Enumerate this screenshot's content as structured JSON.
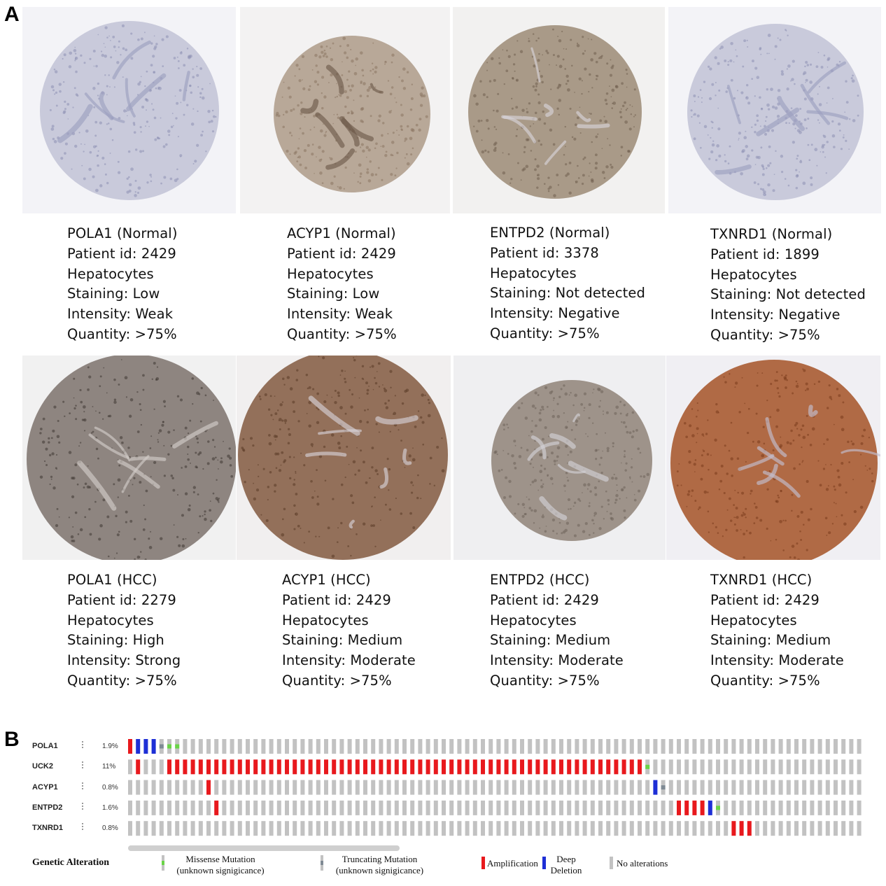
{
  "panel_a": {
    "letter": "A",
    "normal_row": [
      {
        "gene": "POLA1 (Normal)",
        "patient": "Patient id: 2429",
        "cell": "Hepatocytes",
        "staining": "Staining: Low",
        "intensity": "Intensity: Weak",
        "quantity": "Quantity: >75%",
        "tone": "weak"
      },
      {
        "gene": "ACYP1 (Normal)",
        "patient": "Patient id: 2429",
        "cell": "Hepatocytes",
        "staining": "Staining: Low",
        "intensity": "Intensity: Weak",
        "quantity": "Quantity: >75%",
        "tone": "lowbrown"
      },
      {
        "gene": "ENTPD2 (Normal)",
        "patient": "Patient id: 3378",
        "cell": "Hepatocytes",
        "staining": "Staining: Not detected",
        "intensity": "Intensity: Negative",
        "quantity": "Quantity: >75%",
        "tone": "lowbrown2"
      },
      {
        "gene": "TXNRD1 (Normal)",
        "patient": "Patient id: 1899",
        "cell": "Hepatocytes",
        "staining": "Staining: Not detected",
        "intensity": "Intensity: Negative",
        "quantity": "Quantity: >75%",
        "tone": "weak"
      }
    ],
    "hcc_row": [
      {
        "gene": "POLA1 (HCC)",
        "patient": "Patient id: 2279",
        "cell": "Hepatocytes",
        "staining": "Staining: High",
        "intensity": "Intensity: Strong",
        "quantity": "Quantity: >75%",
        "tone": "dark"
      },
      {
        "gene": "ACYP1 (HCC)",
        "patient": "Patient id: 2429",
        "cell": "Hepatocytes",
        "staining": "Staining: Medium",
        "intensity": "Intensity: Moderate",
        "quantity": "Quantity: >75%",
        "tone": "brown"
      },
      {
        "gene": "ENTPD2 (HCC)",
        "patient": "Patient id: 2429",
        "cell": "Hepatocytes",
        "staining": "Staining: Medium",
        "intensity": "Intensity: Moderate",
        "quantity": "Quantity: >75%",
        "tone": "medium"
      },
      {
        "gene": "TXNRD1 (HCC)",
        "patient": "Patient id: 2429",
        "cell": "Hepatocytes",
        "staining": "Staining: Medium",
        "intensity": "Intensity: Moderate",
        "quantity": "Quantity: >75%",
        "tone": "strongbrown"
      }
    ]
  },
  "panel_b": {
    "letter": "B",
    "total_samples": 94,
    "genes": [
      {
        "name": "POLA1",
        "pct": "1.9%",
        "alterations": [
          {
            "i": 0,
            "type": "amplification"
          },
          {
            "i": 1,
            "type": "deep_deletion"
          },
          {
            "i": 2,
            "type": "deep_deletion"
          },
          {
            "i": 3,
            "type": "deep_deletion"
          },
          {
            "i": 4,
            "type": "truncating"
          },
          {
            "i": 5,
            "type": "missense"
          },
          {
            "i": 6,
            "type": "missense"
          }
        ]
      },
      {
        "name": "UCK2",
        "pct": "11%",
        "alterations": [
          {
            "i": 1,
            "type": "amplification"
          },
          {
            "i": 5,
            "type": "amplification"
          },
          {
            "i": 6,
            "type": "amplification"
          },
          {
            "i": 7,
            "type": "amplification"
          },
          {
            "i": 8,
            "type": "amplification"
          },
          {
            "i": 9,
            "type": "amplification"
          },
          {
            "i": 10,
            "type": "amplification"
          },
          {
            "i": 11,
            "type": "amplification"
          },
          {
            "i": 12,
            "type": "amplification"
          },
          {
            "i": 13,
            "type": "amplification"
          },
          {
            "i": 14,
            "type": "amplification"
          },
          {
            "i": 15,
            "type": "amplification"
          },
          {
            "i": 16,
            "type": "amplification"
          },
          {
            "i": 17,
            "type": "amplification"
          },
          {
            "i": 18,
            "type": "amplification"
          },
          {
            "i": 19,
            "type": "amplification"
          },
          {
            "i": 20,
            "type": "amplification"
          },
          {
            "i": 21,
            "type": "amplification"
          },
          {
            "i": 22,
            "type": "amplification"
          },
          {
            "i": 23,
            "type": "amplification"
          },
          {
            "i": 24,
            "type": "amplification"
          },
          {
            "i": 25,
            "type": "amplification"
          },
          {
            "i": 26,
            "type": "amplification"
          },
          {
            "i": 27,
            "type": "amplification"
          },
          {
            "i": 28,
            "type": "amplification"
          },
          {
            "i": 29,
            "type": "amplification"
          },
          {
            "i": 30,
            "type": "amplification"
          },
          {
            "i": 31,
            "type": "amplification"
          },
          {
            "i": 32,
            "type": "amplification"
          },
          {
            "i": 33,
            "type": "amplification"
          },
          {
            "i": 34,
            "type": "amplification"
          },
          {
            "i": 35,
            "type": "amplification"
          },
          {
            "i": 36,
            "type": "amplification"
          },
          {
            "i": 37,
            "type": "amplification"
          },
          {
            "i": 38,
            "type": "amplification"
          },
          {
            "i": 39,
            "type": "amplification"
          },
          {
            "i": 40,
            "type": "amplification"
          },
          {
            "i": 41,
            "type": "amplification"
          },
          {
            "i": 42,
            "type": "amplification"
          },
          {
            "i": 43,
            "type": "amplification"
          },
          {
            "i": 44,
            "type": "amplification"
          },
          {
            "i": 45,
            "type": "amplification"
          },
          {
            "i": 46,
            "type": "amplification"
          },
          {
            "i": 47,
            "type": "amplification"
          },
          {
            "i": 48,
            "type": "amplification"
          },
          {
            "i": 49,
            "type": "amplification"
          },
          {
            "i": 50,
            "type": "amplification"
          },
          {
            "i": 51,
            "type": "amplification"
          },
          {
            "i": 52,
            "type": "amplification"
          },
          {
            "i": 53,
            "type": "amplification"
          },
          {
            "i": 54,
            "type": "amplification"
          },
          {
            "i": 55,
            "type": "amplification"
          },
          {
            "i": 56,
            "type": "amplification"
          },
          {
            "i": 57,
            "type": "amplification"
          },
          {
            "i": 58,
            "type": "amplification"
          },
          {
            "i": 59,
            "type": "amplification"
          },
          {
            "i": 60,
            "type": "amplification"
          },
          {
            "i": 61,
            "type": "amplification"
          },
          {
            "i": 62,
            "type": "amplification"
          },
          {
            "i": 63,
            "type": "amplification"
          },
          {
            "i": 64,
            "type": "amplification"
          },
          {
            "i": 65,
            "type": "amplification"
          },
          {
            "i": 66,
            "type": "missense"
          }
        ]
      },
      {
        "name": "ACYP1",
        "pct": "0.8%",
        "alterations": [
          {
            "i": 10,
            "type": "amplification"
          },
          {
            "i": 67,
            "type": "deep_deletion"
          },
          {
            "i": 68,
            "type": "truncating"
          }
        ]
      },
      {
        "name": "ENTPD2",
        "pct": "1.6%",
        "alterations": [
          {
            "i": 11,
            "type": "amplification"
          },
          {
            "i": 70,
            "type": "amplification"
          },
          {
            "i": 71,
            "type": "amplification"
          },
          {
            "i": 72,
            "type": "amplification"
          },
          {
            "i": 73,
            "type": "amplification"
          },
          {
            "i": 74,
            "type": "deep_deletion"
          },
          {
            "i": 75,
            "type": "missense"
          }
        ]
      },
      {
        "name": "TXNRD1",
        "pct": "0.8%",
        "alterations": [
          {
            "i": 77,
            "type": "amplification"
          },
          {
            "i": 78,
            "type": "amplification"
          },
          {
            "i": 79,
            "type": "amplification"
          }
        ]
      }
    ],
    "colors": {
      "amplification": "#e8191d",
      "deep_deletion": "#1e2fd6",
      "missense": "#6ad447",
      "truncating": "#7f8a94",
      "none": "#c2c2c2"
    },
    "legend": {
      "title": "Genetic Alteration",
      "missense_line1": "Missense Mutation",
      "missense_line2": "(unknown signigicance)",
      "truncating_line1": "Truncating Mutation",
      "truncating_line2": "(unknown signigicance)",
      "amplification": "Amplification",
      "deep_line1": "Deep",
      "deep_line2": "Deletion",
      "no_alt": "No alterations"
    }
  }
}
